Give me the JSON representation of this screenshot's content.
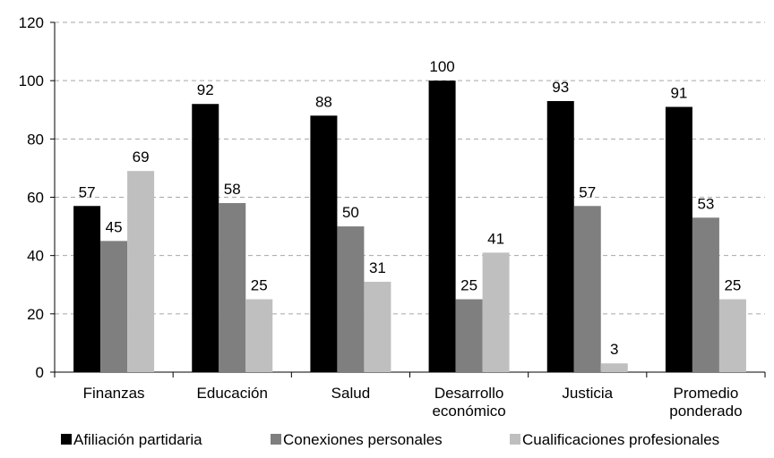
{
  "chart_data": {
    "type": "bar",
    "title": "",
    "xlabel": "",
    "ylabel": "",
    "ylim": [
      0,
      120
    ],
    "yticks": [
      0,
      20,
      40,
      60,
      80,
      100,
      120
    ],
    "grid": true,
    "legend_position": "bottom",
    "categories": [
      [
        "Finanzas"
      ],
      [
        "Educación"
      ],
      [
        "Salud"
      ],
      [
        "Desarrollo",
        "económico"
      ],
      [
        "Justicia"
      ],
      [
        "Promedio",
        "ponderado"
      ]
    ],
    "series": [
      {
        "name": "Afiliación partidaria",
        "color": "#000000",
        "values": [
          57,
          92,
          88,
          100,
          93,
          91
        ]
      },
      {
        "name": "Conexiones personales",
        "color": "#7f7f7f",
        "values": [
          45,
          58,
          50,
          25,
          57,
          53
        ]
      },
      {
        "name": "Cualificaciones profesionales",
        "color": "#bfbfbf",
        "values": [
          69,
          25,
          31,
          41,
          3,
          25
        ]
      }
    ]
  }
}
